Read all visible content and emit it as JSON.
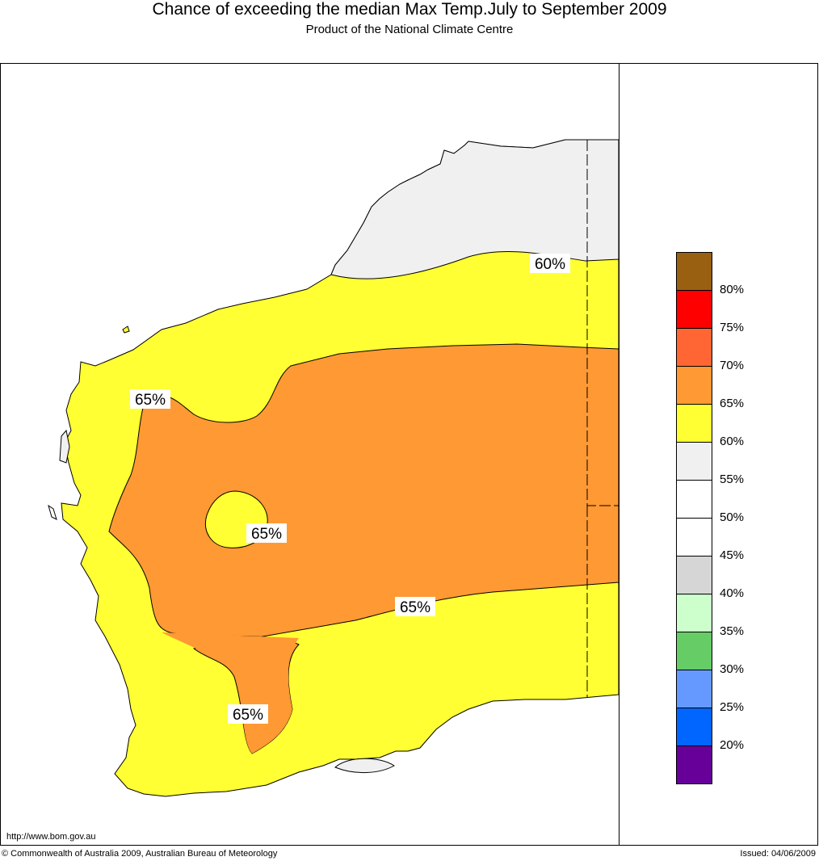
{
  "title": "Chance of exceeding the median Max Temp.July to September 2009",
  "subtitle": "Product of the National Climate Centre",
  "contour_labels": [
    "60%",
    "65%",
    "65%",
    "65%",
    "65%"
  ],
  "legend": {
    "swatches": [
      {
        "name": "swatch-80-plus",
        "color": "#9a6012"
      },
      {
        "name": "swatch-75-80",
        "color": "#ff0000"
      },
      {
        "name": "swatch-70-75",
        "color": "#ff6633"
      },
      {
        "name": "swatch-65-70",
        "color": "#ff9933"
      },
      {
        "name": "swatch-60-65",
        "color": "#ffff33"
      },
      {
        "name": "swatch-55-60",
        "color": "#f0f0f0"
      },
      {
        "name": "swatch-50-55",
        "color": "#ffffff"
      },
      {
        "name": "swatch-45-50",
        "color": "#ffffff"
      },
      {
        "name": "swatch-40-45",
        "color": "#d6d6d6"
      },
      {
        "name": "swatch-35-40",
        "color": "#ccffcc"
      },
      {
        "name": "swatch-30-35",
        "color": "#66cc66"
      },
      {
        "name": "swatch-25-30",
        "color": "#6699ff"
      },
      {
        "name": "swatch-20-25",
        "color": "#0066ff"
      },
      {
        "name": "swatch-below-20",
        "color": "#660099"
      }
    ],
    "labels": [
      "80%",
      "75%",
      "70%",
      "65%",
      "60%",
      "55%",
      "50%",
      "45%",
      "40%",
      "35%",
      "30%",
      "25%",
      "20%"
    ]
  },
  "map_colors": {
    "yellow": "#ffff33",
    "orange": "#ff9933",
    "grey": "#f0f0f0"
  },
  "website": "http://www.bom.gov.au",
  "copyright": "© Commonwealth of Australia 2009, Australian Bureau of Meteorology",
  "issued": "Issued: 04/06/2009"
}
